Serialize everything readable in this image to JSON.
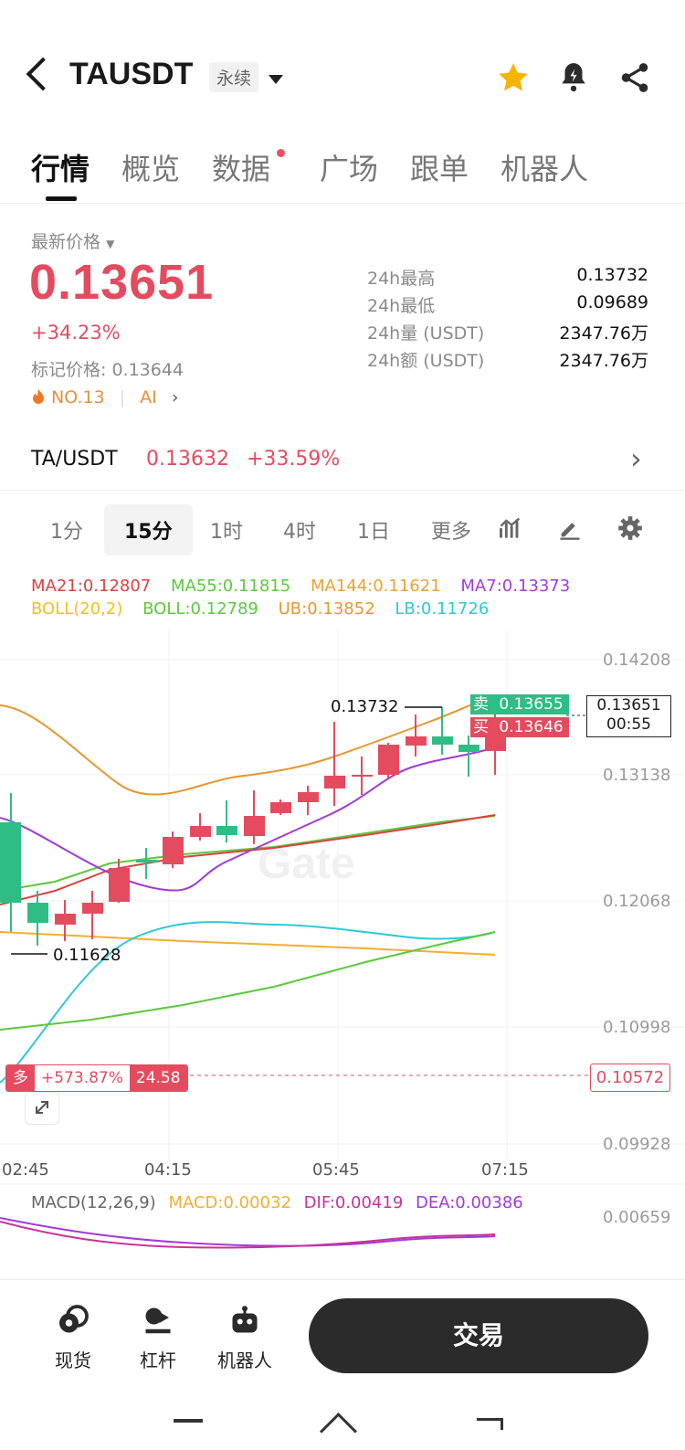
{
  "header": {
    "symbol": "TAUSDT",
    "contract_type": "永续"
  },
  "tabs": [
    {
      "label": "行情"
    },
    {
      "label": "概览"
    },
    {
      "label": "数据"
    },
    {
      "label": "广场"
    },
    {
      "label": "跟单"
    },
    {
      "label": "机器人"
    }
  ],
  "ticker": {
    "price_label": "最新价格",
    "last_price": "0.13651",
    "change_pct": "+34.23%",
    "mark_price_label": "标记价格:",
    "mark_price": "0.13644",
    "rank": "NO.13",
    "ai_label": "AI",
    "stats": [
      {
        "label": "24h最高",
        "value": "0.13732"
      },
      {
        "label": "24h最低",
        "value": "0.09689"
      },
      {
        "label": "24h量 (USDT)",
        "value": "2347.76万"
      },
      {
        "label": "24h额 (USDT)",
        "value": "2347.76万"
      }
    ]
  },
  "spot_pair": {
    "name": "TA/USDT",
    "price": "0.13632",
    "change": "+33.59%"
  },
  "intervals": [
    {
      "label": "1分"
    },
    {
      "label": "15分"
    },
    {
      "label": "1时"
    },
    {
      "label": "4时"
    },
    {
      "label": "1日"
    },
    {
      "label": "更多"
    }
  ],
  "indicators": {
    "ma21": "MA21:0.12807",
    "ma55": "MA55:0.11815",
    "ma144": "MA144:0.11621",
    "ma7": "MA7:0.13373",
    "boll_params": "BOLL(20,2)",
    "boll": "BOLL:0.12789",
    "ub": "UB:0.13852",
    "lb": "LB:0.11726"
  },
  "chart": {
    "price_axis": [
      "0.14208",
      "0.13138",
      "0.12068",
      "0.10998",
      "0.09928"
    ],
    "time_axis": [
      "02:45",
      "04:15",
      "05:45",
      "07:15"
    ],
    "high_marker": "0.13732",
    "low_marker": "0.11628",
    "ask_label": "卖",
    "ask_price": "0.13655",
    "bid_label": "买",
    "bid_price": "0.13646",
    "current_price": "0.13651",
    "countdown": "00:55",
    "position_side": "多",
    "position_pnl": "+573.87%",
    "position_leverage": "24.58",
    "entry_price": "0.10572",
    "watermark": "Gate"
  },
  "macd": {
    "params": "MACD(12,26,9)",
    "macd": "MACD:0.00032",
    "dif": "DIF:0.00419",
    "dea": "DEA:0.00386",
    "axis_value": "0.00659"
  },
  "bottom_nav": [
    {
      "label": "现货",
      "icon": "spot-icon"
    },
    {
      "label": "杠杆",
      "icon": "margin-icon"
    },
    {
      "label": "机器人",
      "icon": "robot-icon"
    }
  ],
  "trade_button": "交易",
  "colors": {
    "up": "#e44b5f",
    "down": "#2ebd85",
    "ma21": "#e04040",
    "ma55": "#5bc93c",
    "ma144": "#f0a030",
    "ma7": "#a23ad8",
    "boll_params": "#f0c020",
    "boll": "#5bc93c",
    "ub": "#e8962e",
    "lb": "#2cc9d8"
  }
}
